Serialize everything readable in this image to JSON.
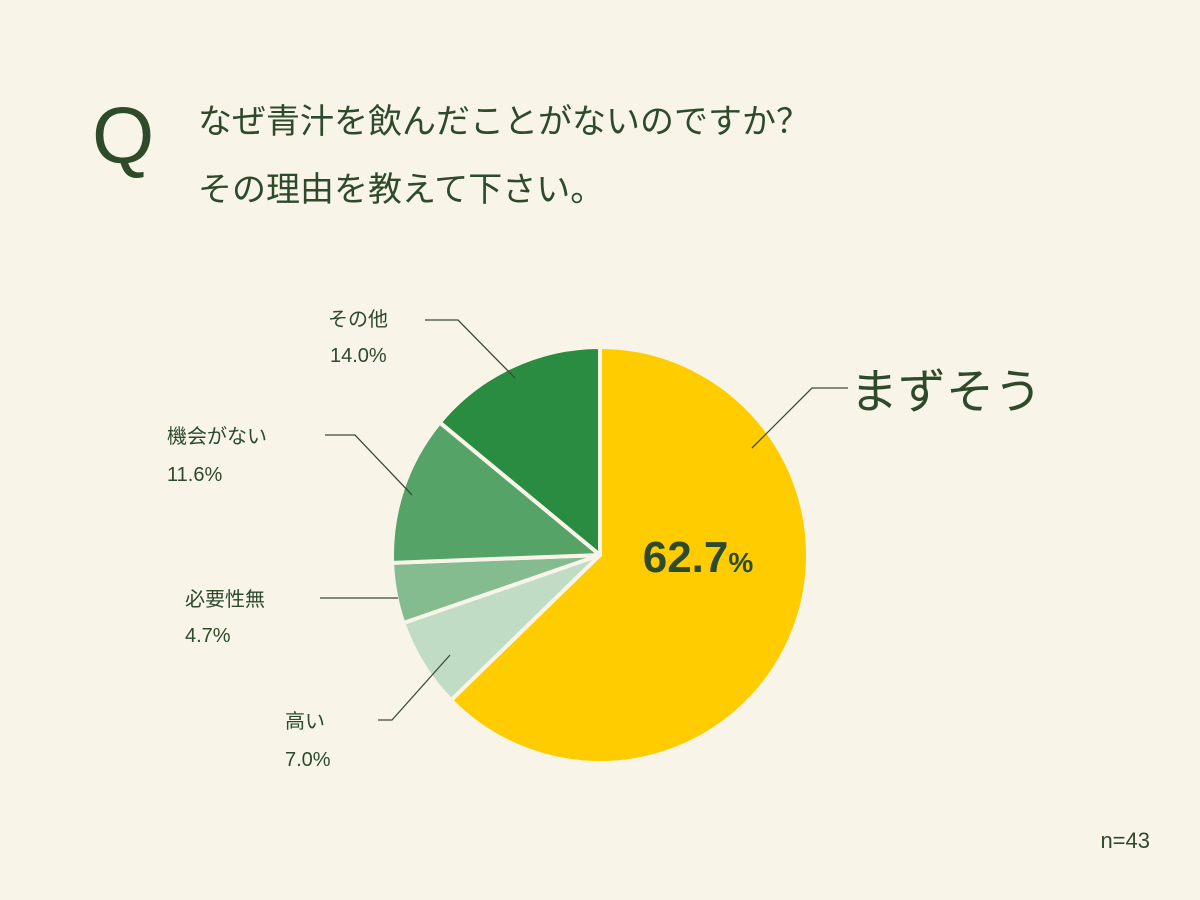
{
  "question": {
    "mark": "Q",
    "line1": "なぜ青汁を飲んだことがないのですか？",
    "line2": "その理由を教えて下さい。"
  },
  "sample_size": "n=43",
  "chart_data": {
    "type": "pie",
    "slices": [
      {
        "label": "まずそう",
        "value": 62.7,
        "display": "62.7",
        "unit": "%",
        "color": "#ffcc00"
      },
      {
        "label": "高い",
        "value": 7.0,
        "display": "7.0%",
        "color": "#c0dcc5"
      },
      {
        "label": "必要性無",
        "value": 4.7,
        "display": "4.7%",
        "color": "#84bb8f"
      },
      {
        "label": "機会がない",
        "value": 11.6,
        "display": "11.6%",
        "color": "#55a366"
      },
      {
        "label": "その他",
        "value": 14.0,
        "display": "14.0%",
        "color": "#2a8c40"
      }
    ]
  }
}
